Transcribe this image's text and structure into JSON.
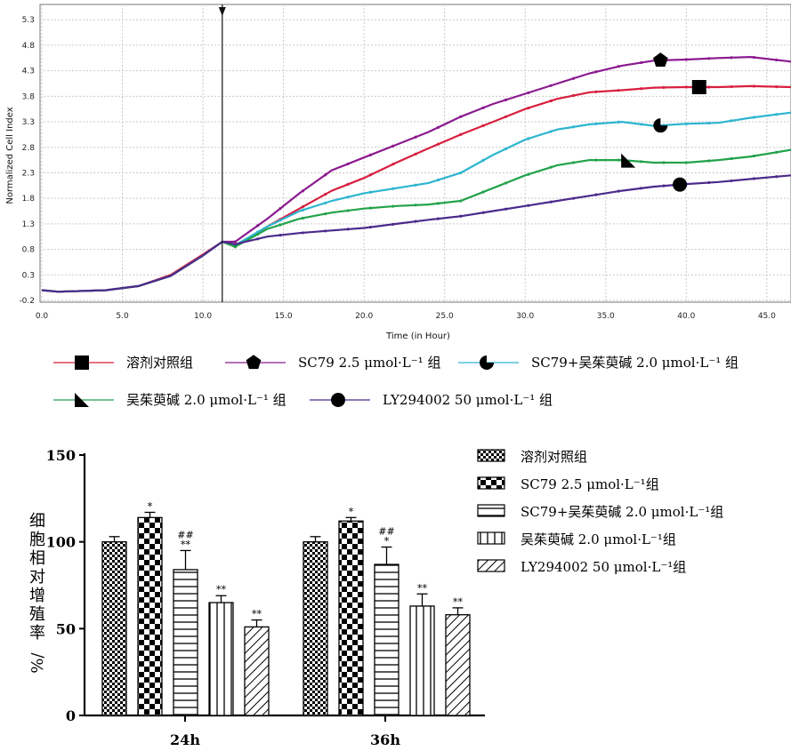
{
  "chart_data": [
    {
      "type": "line",
      "xlabel": "Time (in Hour)",
      "ylabel": "Normalized Cell Index",
      "xlim": [
        0,
        46.5
      ],
      "ylim": [
        -0.2,
        5.6
      ],
      "x_ticks": [
        "0.0",
        "5.0",
        "10.0",
        "15.0",
        "20.0",
        "25.0",
        "30.0",
        "35.0",
        "40.0",
        "45.0"
      ],
      "y_ticks": [
        "-0.2",
        "0.3",
        "0.8",
        "1.3",
        "1.8",
        "2.3",
        "2.8",
        "3.3",
        "3.8",
        "4.3",
        "4.8",
        "5.3"
      ],
      "event_marker_x": 11.2,
      "series": [
        {
          "name": "溶剂对照组",
          "color": "#d81f3f",
          "marker": "square",
          "x": [
            0,
            1,
            2,
            4,
            6,
            8,
            10,
            11.2,
            12,
            14,
            16,
            18,
            20,
            22,
            24,
            26,
            28,
            30,
            32,
            34,
            36,
            38,
            40,
            42,
            44,
            46.5
          ],
          "y": [
            0,
            -0.03,
            -0.02,
            0,
            0.08,
            0.3,
            0.7,
            0.95,
            0.85,
            1.25,
            1.6,
            1.95,
            2.2,
            2.5,
            2.78,
            3.05,
            3.3,
            3.55,
            3.75,
            3.88,
            3.92,
            3.97,
            3.98,
            3.98,
            4.0,
            3.98
          ]
        },
        {
          "name": "SC79 2.5 μmol·L⁻¹ 组",
          "color": "#8b1a8f",
          "marker": "pentagon",
          "x": [
            0,
            1,
            2,
            4,
            6,
            8,
            10,
            11.2,
            12,
            14,
            16,
            18,
            20,
            22,
            24,
            26,
            28,
            30,
            32,
            34,
            36,
            38,
            40,
            42,
            44,
            46.5
          ],
          "y": [
            0,
            -0.03,
            -0.02,
            0,
            0.08,
            0.28,
            0.68,
            0.95,
            0.95,
            1.4,
            1.9,
            2.35,
            2.6,
            2.85,
            3.1,
            3.4,
            3.65,
            3.85,
            4.05,
            4.25,
            4.4,
            4.5,
            4.52,
            4.55,
            4.57,
            4.48
          ]
        },
        {
          "name": "SC79+吴茱萸碱 2.0 μmol·L⁻¹ 组",
          "color": "#2cb5d0",
          "marker": "pie",
          "x": [
            0,
            1,
            2,
            4,
            6,
            8,
            10,
            11.2,
            12,
            14,
            16,
            18,
            20,
            22,
            24,
            26,
            28,
            30,
            32,
            34,
            36,
            38,
            40,
            42,
            44,
            46.5
          ],
          "y": [
            0,
            -0.03,
            -0.02,
            0,
            0.08,
            0.28,
            0.68,
            0.95,
            0.88,
            1.25,
            1.55,
            1.75,
            1.9,
            2.0,
            2.1,
            2.3,
            2.65,
            2.95,
            3.15,
            3.25,
            3.3,
            3.22,
            3.26,
            3.28,
            3.38,
            3.48
          ]
        },
        {
          "name": "吴茱萸碱 2.0 μmol·L⁻¹ 组",
          "color": "#22a24a",
          "marker": "triangle",
          "x": [
            0,
            1,
            2,
            4,
            6,
            8,
            10,
            11.2,
            12,
            14,
            16,
            18,
            20,
            22,
            24,
            26,
            28,
            30,
            32,
            34,
            36,
            38,
            40,
            42,
            44,
            46.5
          ],
          "y": [
            0,
            -0.03,
            -0.02,
            0,
            0.08,
            0.28,
            0.68,
            0.95,
            0.85,
            1.2,
            1.4,
            1.52,
            1.6,
            1.65,
            1.68,
            1.75,
            2.0,
            2.25,
            2.45,
            2.55,
            2.55,
            2.5,
            2.5,
            2.55,
            2.62,
            2.75
          ]
        },
        {
          "name": "LY294002 50 μmol·L⁻¹ 组",
          "color": "#4b2a8c",
          "marker": "circle",
          "x": [
            0,
            1,
            2,
            4,
            6,
            8,
            10,
            11.2,
            12,
            14,
            16,
            18,
            20,
            22,
            24,
            26,
            28,
            30,
            32,
            34,
            36,
            38,
            40,
            42,
            44,
            46.5
          ],
          "y": [
            0,
            -0.03,
            -0.02,
            0,
            0.08,
            0.28,
            0.68,
            0.95,
            0.9,
            1.05,
            1.12,
            1.17,
            1.22,
            1.3,
            1.38,
            1.45,
            1.55,
            1.65,
            1.75,
            1.85,
            1.95,
            2.03,
            2.08,
            2.12,
            2.18,
            2.25
          ]
        }
      ]
    },
    {
      "type": "bar",
      "categories": [
        "24h",
        "36h"
      ],
      "ylabel_chars": [
        "细",
        "胞",
        "相",
        "对",
        "增",
        "殖",
        "率"
      ],
      "ylabel_unit": "%/",
      "ylim": [
        0,
        150
      ],
      "y_ticks": [
        "0",
        "50",
        "100",
        "150"
      ],
      "series": [
        {
          "name": "溶剂对照组",
          "pattern": "checker-small",
          "values": [
            100,
            100
          ],
          "err": [
            3,
            3
          ],
          "sig": [
            "",
            ""
          ]
        },
        {
          "name": "SC79 2.5 μmol·L⁻¹组",
          "pattern": "checker-large",
          "values": [
            114,
            112
          ],
          "err": [
            3,
            2
          ],
          "sig": [
            "*",
            "*"
          ]
        },
        {
          "name": "SC79+吴茱萸碱 2.0 μmol·L⁻¹组",
          "pattern": "hlines",
          "values": [
            84,
            87
          ],
          "err": [
            11,
            10
          ],
          "sig": [
            "##\n**",
            "##\n*"
          ]
        },
        {
          "name": "吴茱萸碱  2.0 μmol·L⁻¹组",
          "pattern": "vlines",
          "values": [
            65,
            63
          ],
          "err": [
            4,
            7
          ],
          "sig": [
            "**",
            "**"
          ]
        },
        {
          "name": "LY294002 50 μmol·L⁻¹组",
          "pattern": "diag",
          "values": [
            51,
            58
          ],
          "err": [
            4,
            4
          ],
          "sig": [
            "**",
            "**"
          ]
        }
      ]
    }
  ],
  "line_legend": [
    {
      "label": "溶剂对照组",
      "color": "#d81f3f",
      "marker": "square"
    },
    {
      "label": "SC79 2.5 μmol·L⁻¹ 组",
      "color": "#8b1a8f",
      "marker": "pentagon"
    },
    {
      "label": "SC79+吴茱萸碱 2.0 μmol·L⁻¹ 组",
      "color": "#2cb5d0",
      "marker": "pie"
    },
    {
      "label": "吴茱萸碱 2.0 μmol·L⁻¹ 组",
      "color": "#22a24a",
      "marker": "triangle"
    },
    {
      "label": "LY294002 50 μmol·L⁻¹ 组",
      "color": "#4b2a8c",
      "marker": "circle"
    }
  ]
}
